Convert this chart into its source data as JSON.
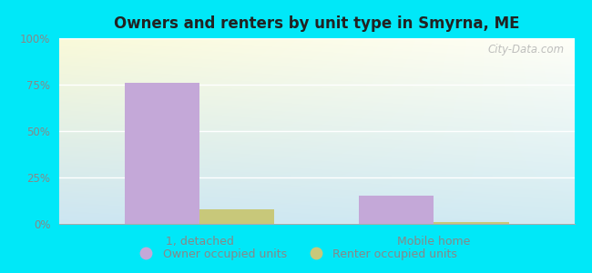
{
  "title": "Owners and renters by unit type in Smyrna, ME",
  "categories": [
    "1, detached",
    "Mobile home"
  ],
  "owner_values": [
    76,
    15
  ],
  "renter_values": [
    8,
    1
  ],
  "owner_color": "#c4a8d8",
  "renter_color": "#c8c87a",
  "ylim": [
    0,
    100
  ],
  "yticks": [
    0,
    25,
    50,
    75,
    100
  ],
  "ytick_labels": [
    "0%",
    "25%",
    "50%",
    "75%",
    "100%"
  ],
  "legend_owner": "Owner occupied units",
  "legend_renter": "Renter occupied units",
  "bar_width": 0.32,
  "bg_topleft": "#d8eed8",
  "bg_topright": "#f0f8ee",
  "bg_bottomleft": "#c8eee0",
  "bg_bottomright": "#e8f8f0",
  "outer_color": "#00e8f8",
  "watermark": "City-Data.com",
  "tick_color": "#888888",
  "title_color": "#222222"
}
